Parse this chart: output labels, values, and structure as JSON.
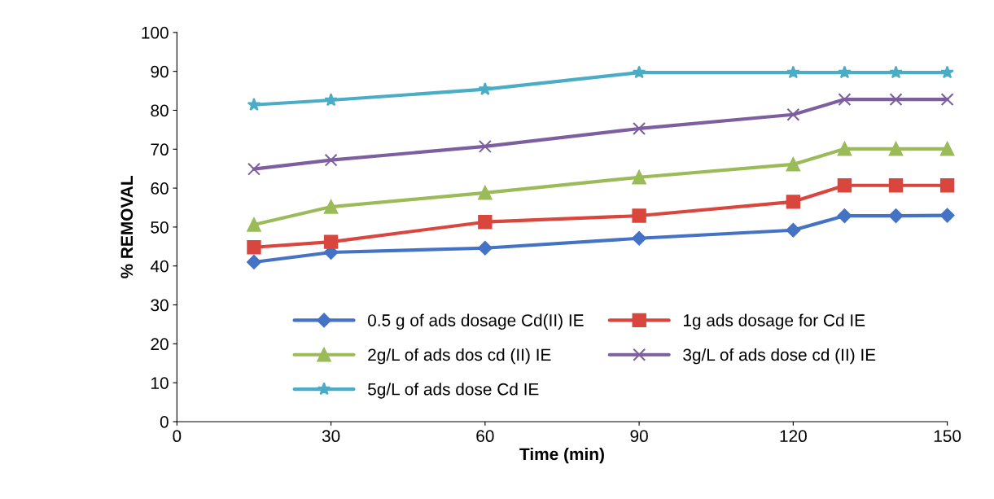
{
  "chart_data": {
    "type": "line",
    "xlabel": "Time (min)",
    "ylabel": "% REMOVAL",
    "x": [
      15,
      30,
      60,
      90,
      120,
      130,
      140,
      150
    ],
    "series": [
      {
        "name": "0.5 g of ads dosage Cd(II) IE",
        "color": "#4472c4",
        "marker": "diamond",
        "values": [
          41.0,
          43.5,
          44.6,
          47.1,
          49.2,
          52.9,
          52.9,
          53.0
        ]
      },
      {
        "name": "1g ads dosage for Cd IE",
        "color": "#d9463e",
        "marker": "square",
        "values": [
          44.8,
          46.2,
          51.3,
          52.9,
          56.5,
          60.7,
          60.7,
          60.7
        ]
      },
      {
        "name": "2g/L of ads dos cd (II) IE",
        "color": "#9bbb59",
        "marker": "triangle",
        "values": [
          50.6,
          55.2,
          58.8,
          62.8,
          66.1,
          70.1,
          70.1,
          70.1
        ]
      },
      {
        "name": "3g/L of ads dose cd (II) IE",
        "color": "#7d5fa0",
        "marker": "cross",
        "values": [
          64.9,
          67.2,
          70.7,
          75.3,
          78.9,
          82.8,
          82.8,
          82.8
        ]
      },
      {
        "name": "5g/L of ads dose Cd IE",
        "color": "#4bacc6",
        "marker": "star",
        "values": [
          81.4,
          82.6,
          85.4,
          89.7,
          89.7,
          89.7,
          89.7,
          89.7
        ]
      }
    ],
    "xlim": [
      0,
      150
    ],
    "xticks": [
      0,
      30,
      60,
      90,
      120,
      150
    ],
    "ylim": [
      0,
      100
    ],
    "yticks": [
      0,
      10,
      20,
      30,
      40,
      50,
      60,
      70,
      80,
      90,
      100
    ],
    "grid": false,
    "legend": "bottom"
  }
}
